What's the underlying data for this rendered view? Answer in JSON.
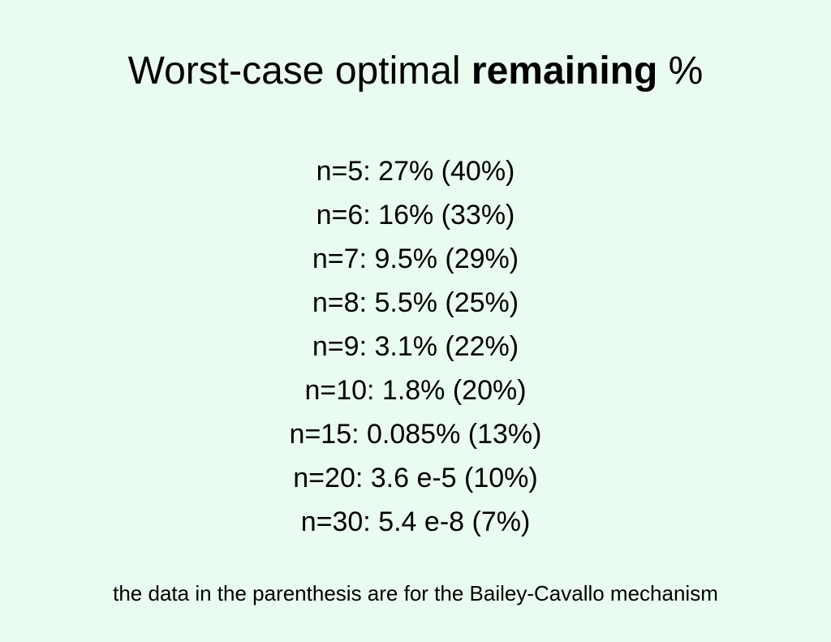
{
  "slide": {
    "title": {
      "prefix": "Worst-case optimal ",
      "emphasis": "remaining",
      "suffix": " %"
    },
    "results": [
      "n=5: 27% (40%)",
      "n=6: 16% (33%)",
      "n=7: 9.5% (29%)",
      "n=8: 5.5% (25%)",
      "n=9: 3.1% (22%)",
      "n=10: 1.8% (20%)",
      "n=15: 0.085% (13%)",
      "n=20: 3.6 e-5 (10%)",
      "n=30: 5.4 e-8 (7%)"
    ],
    "footnote": "the data in the parenthesis are for the Bailey-Cavallo mechanism"
  },
  "colors": {
    "background": "#EAFCF0",
    "text": "#000000"
  }
}
